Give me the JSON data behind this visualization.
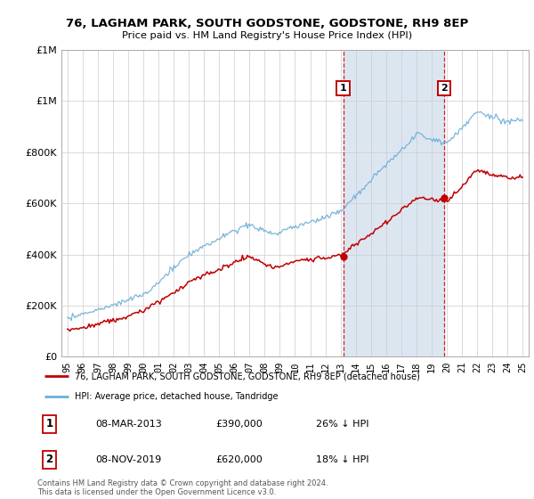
{
  "title1": "76, LAGHAM PARK, SOUTH GODSTONE, GODSTONE, RH9 8EP",
  "title2": "Price paid vs. HM Land Registry's House Price Index (HPI)",
  "sale1_price": 390000,
  "sale1_label": "1",
  "sale1_pct": "26% ↓ HPI",
  "sale1_date_str": "08-MAR-2013",
  "sale2_price": 620000,
  "sale2_label": "2",
  "sale2_pct": "18% ↓ HPI",
  "sale2_date_str": "08-NOV-2019",
  "legend_line1": "76, LAGHAM PARK, SOUTH GODSTONE, GODSTONE, RH9 8EP (detached house)",
  "legend_line2": "HPI: Average price, detached house, Tandridge",
  "footer": "Contains HM Land Registry data © Crown copyright and database right 2024.\nThis data is licensed under the Open Government Licence v3.0.",
  "hpi_color": "#6baed6",
  "price_color": "#c00000",
  "shade_color": "#dce6f1",
  "background_color": "#ffffff",
  "ylim": [
    0,
    1200000
  ],
  "yticks": [
    0,
    200000,
    400000,
    600000,
    800000,
    1000000,
    1200000
  ],
  "sale1_x": 2013.17,
  "sale2_x": 2019.83
}
